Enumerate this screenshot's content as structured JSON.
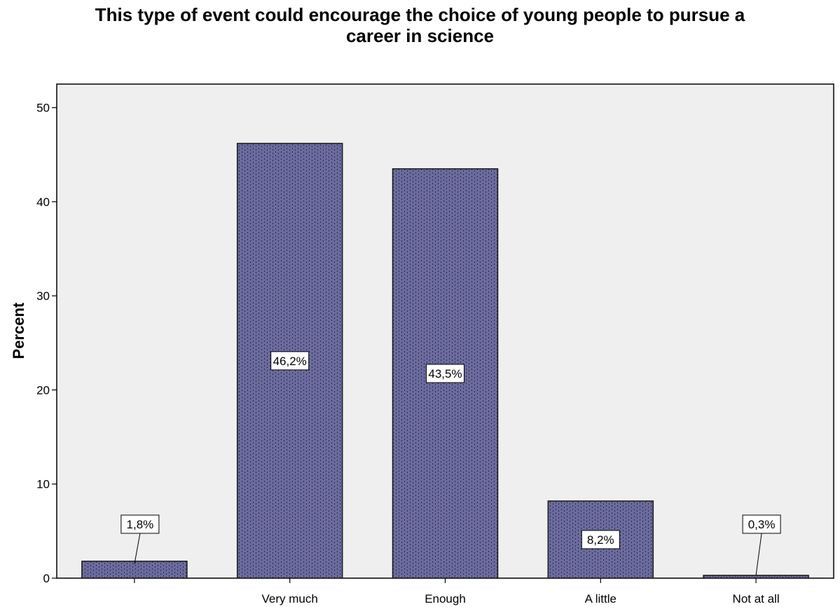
{
  "chart_data": {
    "type": "bar",
    "title_lines": [
      "This type of event could encourage the choice of young people to pursue a",
      "career in science"
    ],
    "xlabel": "",
    "ylabel": "Percent",
    "ylim": [
      0,
      52.5
    ],
    "yticks": [
      0,
      10,
      20,
      30,
      40,
      50
    ],
    "grid": false,
    "categories": [
      "",
      "Very much",
      "Enough",
      "A little",
      "Not at all"
    ],
    "values": [
      1.8,
      46.2,
      43.5,
      8.2,
      0.3
    ],
    "data_labels": [
      "1,8%",
      "46,2%",
      "43,5%",
      "8,2%",
      "0,3%"
    ],
    "colors": {
      "bar_fill": "#6b6b9e",
      "bar_stroke": "#1a1a1a",
      "plot_background": "#efefef",
      "pattern_dots": "#2b2b4a"
    }
  }
}
